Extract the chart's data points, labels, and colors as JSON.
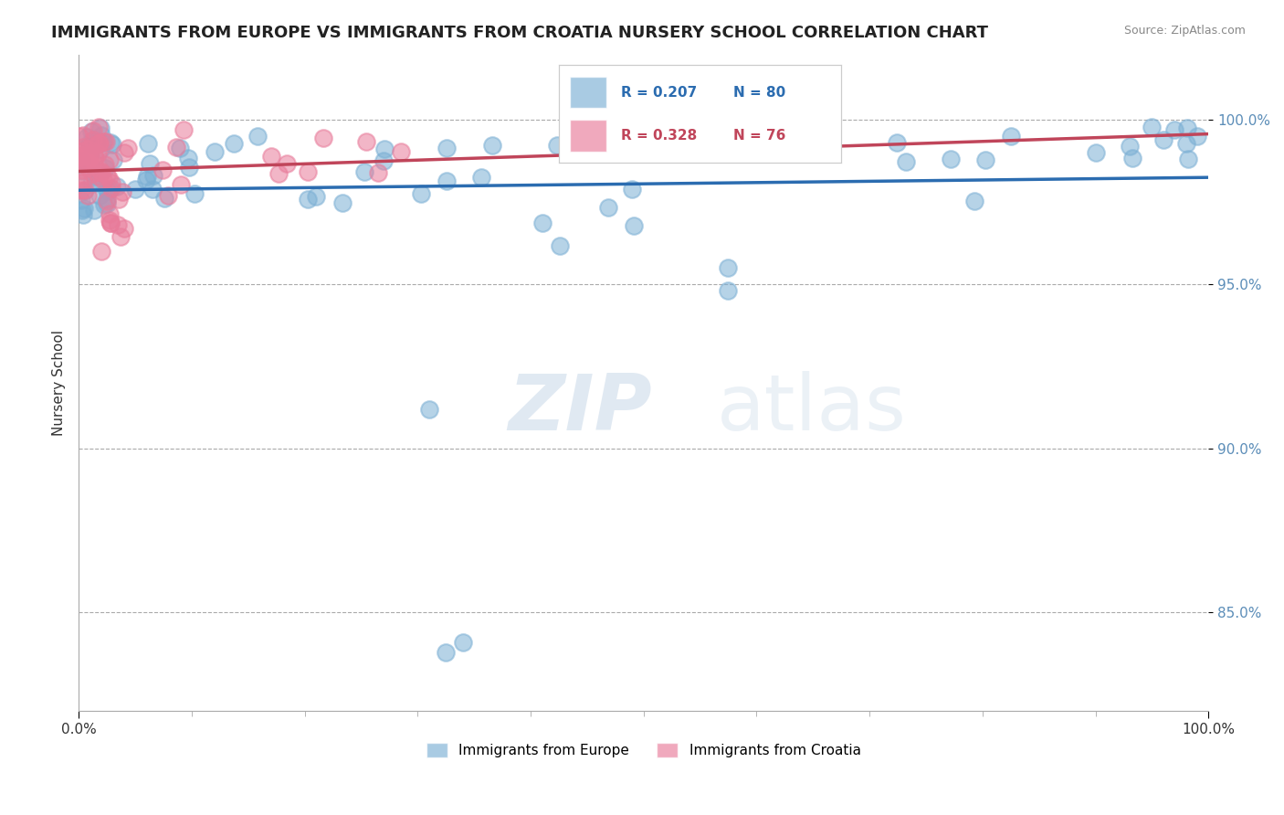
{
  "title": "IMMIGRANTS FROM EUROPE VS IMMIGRANTS FROM CROATIA NURSERY SCHOOL CORRELATION CHART",
  "source": "Source: ZipAtlas.com",
  "ylabel": "Nursery School",
  "legend_label_blue": "Immigrants from Europe",
  "legend_label_pink": "Immigrants from Croatia",
  "legend_r_blue": "R = 0.207",
  "legend_n_blue": "N = 80",
  "legend_r_pink": "R = 0.328",
  "legend_n_pink": "N = 76",
  "xlim": [
    0.0,
    1.0
  ],
  "ylim": [
    0.82,
    1.02
  ],
  "yticks": [
    0.85,
    0.9,
    0.95,
    1.0
  ],
  "ytick_labels": [
    "85.0%",
    "90.0%",
    "95.0%",
    "100.0%"
  ],
  "xtick_labels": [
    "0.0%",
    "100.0%"
  ],
  "blue_color": "#7BAFD4",
  "pink_color": "#E87B9A",
  "trend_blue": "#2B6CB0",
  "trend_pink": "#C0455A",
  "watermark_zip": "ZIP",
  "watermark_atlas": "atlas"
}
